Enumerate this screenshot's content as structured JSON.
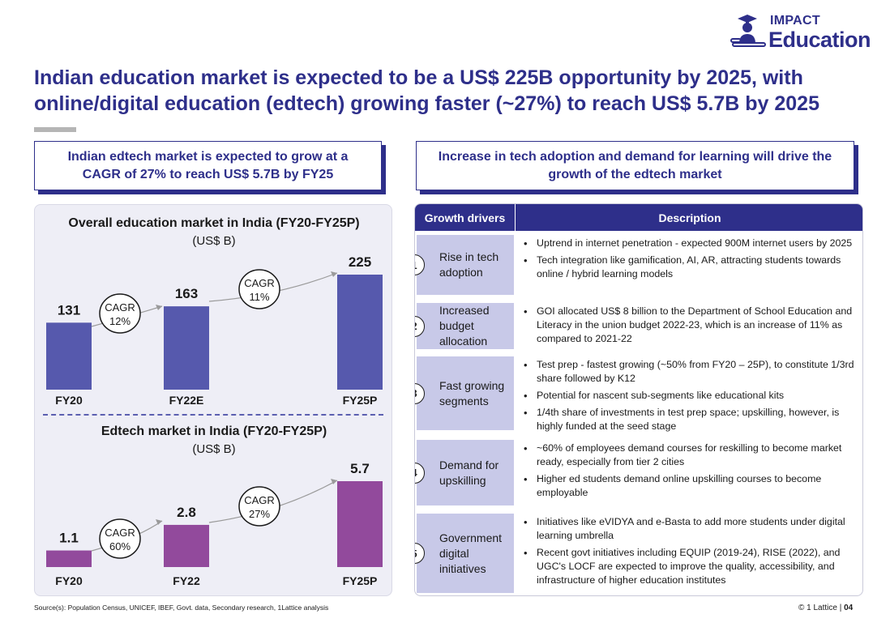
{
  "logo": {
    "line1": "IMPACT",
    "line2": "Education"
  },
  "title": "Indian education market is expected to be a US$ 225B opportunity by 2025, with online/digital education (edtech) growing faster (~27%) to reach US$ 5.7B by 2025",
  "left_header": "Indian edtech market is expected to grow at a CAGR of 27% to reach US$ 5.7B by FY25",
  "right_header": "Increase in tech adoption and demand for learning will drive the growth of the edtech market",
  "chart_data": [
    {
      "type": "bar",
      "title": "Overall education market in India (FY20-FY25P)",
      "subtitle": "(US$ B)",
      "categories": [
        "FY20",
        "FY22E",
        "FY25P"
      ],
      "values": [
        131,
        163,
        225
      ],
      "value_labels": [
        "131",
        "163",
        "225"
      ],
      "color": "#5659ad",
      "cagr": [
        {
          "label_line1": "CAGR",
          "label_line2": "12%"
        },
        {
          "label_line1": "CAGR",
          "label_line2": "11%"
        }
      ]
    },
    {
      "type": "bar",
      "title": "Edtech market in India (FY20-FY25P)",
      "subtitle": "(US$ B)",
      "categories": [
        "FY20",
        "FY22",
        "FY25P"
      ],
      "values": [
        1.1,
        2.8,
        5.7
      ],
      "value_labels": [
        "1.1",
        "2.8",
        "5.7"
      ],
      "color": "#924a9c",
      "cagr": [
        {
          "label_line1": "CAGR",
          "label_line2": "60%"
        },
        {
          "label_line1": "CAGR",
          "label_line2": "27%"
        }
      ]
    }
  ],
  "table": {
    "col1": "Growth drivers",
    "col2": "Description",
    "rows": [
      {
        "num": "1",
        "driver": "Rise in tech adoption",
        "bullets": [
          "Uptrend in internet penetration - expected 900M internet users by 2025",
          "Tech integration like gamification, AI, AR, attracting students towards online / hybrid learning models"
        ]
      },
      {
        "num": "2",
        "driver": "Increased budget allocation",
        "bullets": [
          "GOI allocated US$ 8 billion to the Department of School Education and Literacy in the union budget 2022-23, which is an increase of 11% as compared to 2021-22"
        ]
      },
      {
        "num": "3",
        "driver": "Fast growing segments",
        "bullets": [
          "Test prep - fastest growing (~50% from FY20 – 25P), to constitute 1/3rd  share followed by K12",
          "Potential for nascent sub-segments like educational kits",
          "1/4th share of investments in test prep space; upskilling, however, is highly funded at the seed stage"
        ]
      },
      {
        "num": "4",
        "driver": "Demand for upskilling",
        "bullets": [
          "~60% of employees demand courses for reskilling to become market ready, especially from tier 2 cities",
          "Higher ed students demand online upskilling courses to become employable"
        ]
      },
      {
        "num": "5",
        "driver": "Government digital initiatives",
        "bullets": [
          "Initiatives like eVIDYA and e-Basta to add more students under digital learning umbrella",
          "Recent govt initiatives including EQUIP (2019-24), RISE (2022), and UGC's LOCF are expected to improve the quality, accessibility, and infrastructure of higher education institutes"
        ]
      }
    ]
  },
  "footer": {
    "source": "Source(s): Population Census, UNICEF, IBEF, Govt. data, Secondary research, 1Lattice analysis",
    "copyright": "© 1 Lattice",
    "page": "04"
  }
}
